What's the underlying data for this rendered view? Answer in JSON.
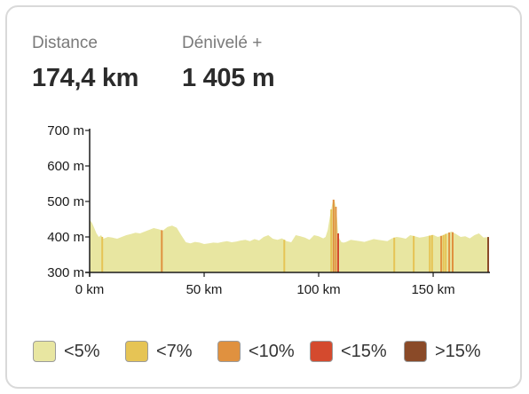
{
  "stats": {
    "distance": {
      "label": "Distance",
      "value": "174,4 km"
    },
    "elevation_gain": {
      "label": "Dénivelé +",
      "value": "1 405 m"
    }
  },
  "legend": [
    {
      "label": "<5%",
      "color": "#e8e6a1"
    },
    {
      "label": "<7%",
      "color": "#e6c455"
    },
    {
      "label": "<10%",
      "color": "#e0913f"
    },
    {
      "label": "<15%",
      "color": "#d44a2e"
    },
    {
      "label": ">15%",
      "color": "#8a4a28"
    }
  ],
  "chart_data": {
    "type": "area",
    "title": "",
    "xlabel": "",
    "ylabel": "",
    "xlim": [
      0,
      174.4
    ],
    "ylim": [
      300,
      700
    ],
    "x_ticks": [
      {
        "value": 0,
        "label": "0 km"
      },
      {
        "value": 50,
        "label": "50 km"
      },
      {
        "value": 100,
        "label": "100 km"
      },
      {
        "value": 150,
        "label": "150 km"
      }
    ],
    "y_ticks": [
      {
        "value": 300,
        "label": "300 m"
      },
      {
        "value": 400,
        "label": "400 m"
      },
      {
        "value": 500,
        "label": "500 m"
      },
      {
        "value": 600,
        "label": "600 m"
      },
      {
        "value": 700,
        "label": "700 m"
      }
    ],
    "profile": {
      "x": [
        0,
        1,
        2,
        3,
        4,
        5,
        6,
        8,
        10,
        12,
        14,
        16,
        18,
        20,
        22,
        24,
        26,
        28,
        30,
        32,
        34,
        36,
        38,
        40,
        42,
        44,
        46,
        48,
        50,
        52,
        54,
        56,
        58,
        60,
        62,
        64,
        66,
        68,
        70,
        72,
        74,
        76,
        78,
        80,
        82,
        84,
        86,
        88,
        90,
        92,
        94,
        96,
        98,
        100,
        102,
        103,
        104,
        105,
        106,
        106.5,
        107,
        107.5,
        108,
        108.5,
        109,
        110,
        111,
        112,
        114,
        116,
        118,
        120,
        122,
        124,
        126,
        128,
        130,
        132,
        134,
        136,
        138,
        140,
        142,
        144,
        146,
        148,
        150,
        152,
        154,
        156,
        158,
        160,
        162,
        164,
        166,
        168,
        170,
        172,
        174.4
      ],
      "y": [
        448,
        440,
        425,
        410,
        400,
        405,
        395,
        400,
        398,
        395,
        400,
        405,
        408,
        412,
        410,
        415,
        420,
        425,
        422,
        418,
        428,
        432,
        426,
        405,
        385,
        382,
        386,
        384,
        380,
        382,
        384,
        383,
        386,
        388,
        385,
        387,
        390,
        392,
        388,
        394,
        390,
        400,
        405,
        395,
        392,
        396,
        388,
        385,
        405,
        402,
        398,
        392,
        405,
        402,
        396,
        400,
        420,
        460,
        495,
        505,
        500,
        485,
        455,
        410,
        395,
        385,
        384,
        386,
        392,
        390,
        388,
        386,
        390,
        394,
        392,
        390,
        388,
        396,
        400,
        398,
        395,
        405,
        402,
        398,
        400,
        403,
        406,
        400,
        404,
        410,
        415,
        408,
        400,
        402,
        396,
        405,
        410,
        398,
        400
      ]
    },
    "steep_segments": [
      {
        "x": 5.5,
        "grade": "<7%"
      },
      {
        "x": 31.5,
        "grade": "<10%"
      },
      {
        "x": 85.0,
        "grade": "<7%"
      },
      {
        "x": 105.5,
        "grade": "<7%"
      },
      {
        "x": 106.5,
        "grade": "<10%"
      },
      {
        "x": 107.5,
        "grade": "<10%"
      },
      {
        "x": 108.5,
        "grade": "<15%"
      },
      {
        "x": 133.0,
        "grade": "<7%"
      },
      {
        "x": 141.5,
        "grade": "<7%"
      },
      {
        "x": 148.5,
        "grade": "<7%"
      },
      {
        "x": 149.5,
        "grade": "<7%"
      },
      {
        "x": 153.5,
        "grade": "<10%"
      },
      {
        "x": 154.5,
        "grade": "<7%"
      },
      {
        "x": 155.5,
        "grade": "<7%"
      },
      {
        "x": 157.0,
        "grade": "<10%"
      },
      {
        "x": 158.5,
        "grade": "<10%"
      },
      {
        "x": 174.0,
        "grade": ">15%"
      }
    ]
  }
}
